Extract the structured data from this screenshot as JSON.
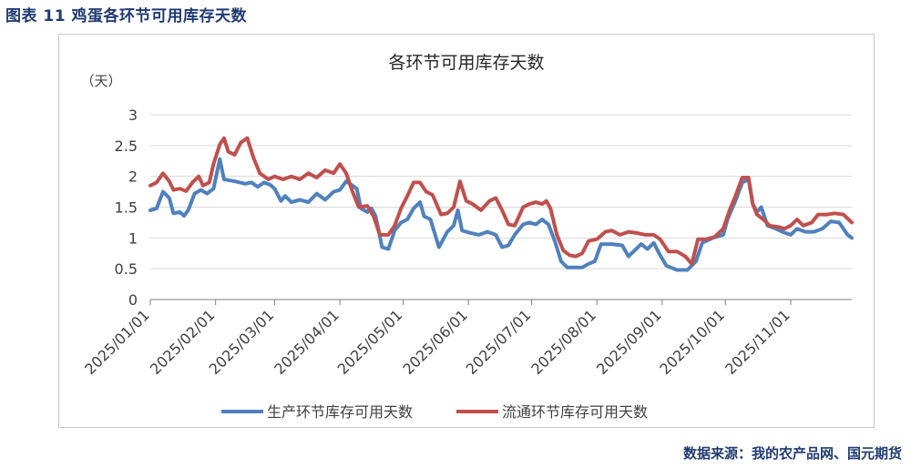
{
  "figure_caption": "图表 11  鸡蛋各环节可用库存天数",
  "source_note": "数据来源：我的农产品网、国元期货",
  "colors": {
    "series1": "#4f81bd",
    "series2": "#c0504d",
    "grid": "#d9d9d9",
    "axis": "#7f7f7f",
    "caption": "#1f3b73"
  },
  "chart_data": {
    "type": "line",
    "title": "各环节可用库存天数",
    "ylabel": "（天）",
    "xlabel": "",
    "ylim": [
      0,
      3
    ],
    "yticks": [
      "0",
      "0.5",
      "1",
      "1.5",
      "2",
      "2.5",
      "3"
    ],
    "grid": "horizontal",
    "legend_position": "bottom",
    "x_tick_labels": [
      "2025/01/01",
      "2025/02/01",
      "2025/03/01",
      "2025/04/01",
      "2025/05/01",
      "2025/06/01",
      "2025/07/01",
      "2025/08/01",
      "2025/09/01",
      "2025/10/01",
      "2025/11/01"
    ],
    "x_range": [
      "2025/01/01",
      "2025/11/30"
    ],
    "series": [
      {
        "name": "生产环节库存可用天数",
        "color": "#4f81bd",
        "points": [
          [
            "2025/01/01",
            1.45
          ],
          [
            "2025/01/04",
            1.48
          ],
          [
            "2025/01/07",
            1.75
          ],
          [
            "2025/01/10",
            1.65
          ],
          [
            "2025/01/12",
            1.4
          ],
          [
            "2025/01/15",
            1.42
          ],
          [
            "2025/01/17",
            1.36
          ],
          [
            "2025/01/19",
            1.45
          ],
          [
            "2025/01/22",
            1.72
          ],
          [
            "2025/01/25",
            1.78
          ],
          [
            "2025/01/28",
            1.72
          ],
          [
            "2025/01/31",
            1.8
          ],
          [
            "2025/02/03",
            2.28
          ],
          [
            "2025/02/05",
            1.95
          ],
          [
            "2025/02/10",
            1.92
          ],
          [
            "2025/02/15",
            1.88
          ],
          [
            "2025/02/18",
            1.9
          ],
          [
            "2025/02/21",
            1.83
          ],
          [
            "2025/02/24",
            1.9
          ],
          [
            "2025/02/27",
            1.86
          ],
          [
            "2025/03/01",
            1.8
          ],
          [
            "2025/03/04",
            1.6
          ],
          [
            "2025/03/06",
            1.68
          ],
          [
            "2025/03/09",
            1.58
          ],
          [
            "2025/03/13",
            1.62
          ],
          [
            "2025/03/17",
            1.58
          ],
          [
            "2025/03/21",
            1.72
          ],
          [
            "2025/03/25",
            1.62
          ],
          [
            "2025/03/29",
            1.75
          ],
          [
            "2025/04/01",
            1.78
          ],
          [
            "2025/04/04",
            1.92
          ],
          [
            "2025/04/07",
            1.85
          ],
          [
            "2025/04/09",
            1.8
          ],
          [
            "2025/04/11",
            1.48
          ],
          [
            "2025/04/14",
            1.42
          ],
          [
            "2025/04/16",
            1.48
          ],
          [
            "2025/04/18",
            1.35
          ],
          [
            "2025/04/21",
            0.85
          ],
          [
            "2025/04/24",
            0.82
          ],
          [
            "2025/04/27",
            1.12
          ],
          [
            "2025/04/30",
            1.25
          ],
          [
            "2025/05/03",
            1.3
          ],
          [
            "2025/05/06",
            1.48
          ],
          [
            "2025/05/09",
            1.58
          ],
          [
            "2025/05/11",
            1.35
          ],
          [
            "2025/05/14",
            1.3
          ],
          [
            "2025/05/18",
            0.85
          ],
          [
            "2025/05/22",
            1.1
          ],
          [
            "2025/05/25",
            1.2
          ],
          [
            "2025/05/27",
            1.45
          ],
          [
            "2025/05/29",
            1.12
          ],
          [
            "2025/06/02",
            1.08
          ],
          [
            "2025/06/06",
            1.05
          ],
          [
            "2025/06/10",
            1.1
          ],
          [
            "2025/06/14",
            1.05
          ],
          [
            "2025/06/17",
            0.85
          ],
          [
            "2025/06/20",
            0.88
          ],
          [
            "2025/06/23",
            1.05
          ],
          [
            "2025/06/27",
            1.22
          ],
          [
            "2025/06/30",
            1.25
          ],
          [
            "2025/07/03",
            1.22
          ],
          [
            "2025/07/06",
            1.3
          ],
          [
            "2025/07/09",
            1.22
          ],
          [
            "2025/07/12",
            0.95
          ],
          [
            "2025/07/15",
            0.62
          ],
          [
            "2025/07/18",
            0.52
          ],
          [
            "2025/07/21",
            0.52
          ],
          [
            "2025/07/25",
            0.52
          ],
          [
            "2025/07/28",
            0.58
          ],
          [
            "2025/07/31",
            0.62
          ],
          [
            "2025/08/03",
            0.9
          ],
          [
            "2025/08/08",
            0.9
          ],
          [
            "2025/08/13",
            0.88
          ],
          [
            "2025/08/16",
            0.7
          ],
          [
            "2025/08/19",
            0.8
          ],
          [
            "2025/08/22",
            0.9
          ],
          [
            "2025/08/25",
            0.82
          ],
          [
            "2025/08/28",
            0.92
          ],
          [
            "2025/08/31",
            0.72
          ],
          [
            "2025/09/03",
            0.55
          ],
          [
            "2025/09/08",
            0.48
          ],
          [
            "2025/09/13",
            0.48
          ],
          [
            "2025/09/17",
            0.62
          ],
          [
            "2025/09/20",
            0.92
          ],
          [
            "2025/09/25",
            1.0
          ],
          [
            "2025/09/30",
            1.05
          ],
          [
            "2025/10/02",
            1.3
          ],
          [
            "2025/10/06",
            1.62
          ],
          [
            "2025/10/09",
            1.9
          ],
          [
            "2025/10/12",
            1.95
          ],
          [
            "2025/10/14",
            1.55
          ],
          [
            "2025/10/16",
            1.42
          ],
          [
            "2025/10/18",
            1.5
          ],
          [
            "2025/10/21",
            1.2
          ],
          [
            "2025/10/25",
            1.15
          ],
          [
            "2025/10/28",
            1.1
          ],
          [
            "2025/11/01",
            1.05
          ],
          [
            "2025/11/04",
            1.15
          ],
          [
            "2025/11/08",
            1.1
          ],
          [
            "2025/11/12",
            1.1
          ],
          [
            "2025/11/16",
            1.15
          ],
          [
            "2025/11/20",
            1.27
          ],
          [
            "2025/11/24",
            1.25
          ],
          [
            "2025/11/28",
            1.05
          ],
          [
            "2025/11/30",
            1.0
          ]
        ]
      },
      {
        "name": "流通环节库存可用天数",
        "color": "#c0504d",
        "points": [
          [
            "2025/01/01",
            1.85
          ],
          [
            "2025/01/04",
            1.9
          ],
          [
            "2025/01/07",
            2.05
          ],
          [
            "2025/01/10",
            1.92
          ],
          [
            "2025/01/12",
            1.78
          ],
          [
            "2025/01/15",
            1.8
          ],
          [
            "2025/01/18",
            1.76
          ],
          [
            "2025/01/21",
            1.9
          ],
          [
            "2025/01/24",
            2.0
          ],
          [
            "2025/01/26",
            1.85
          ],
          [
            "2025/01/29",
            1.9
          ],
          [
            "2025/01/31",
            2.2
          ],
          [
            "2025/02/03",
            2.52
          ],
          [
            "2025/02/05",
            2.62
          ],
          [
            "2025/02/07",
            2.4
          ],
          [
            "2025/02/10",
            2.35
          ],
          [
            "2025/02/13",
            2.55
          ],
          [
            "2025/02/16",
            2.62
          ],
          [
            "2025/02/19",
            2.3
          ],
          [
            "2025/02/22",
            2.05
          ],
          [
            "2025/02/26",
            1.95
          ],
          [
            "2025/03/01",
            2.0
          ],
          [
            "2025/03/05",
            1.95
          ],
          [
            "2025/03/09",
            2.0
          ],
          [
            "2025/03/13",
            1.95
          ],
          [
            "2025/03/17",
            2.05
          ],
          [
            "2025/03/21",
            1.98
          ],
          [
            "2025/03/25",
            2.1
          ],
          [
            "2025/03/29",
            2.05
          ],
          [
            "2025/04/01",
            2.2
          ],
          [
            "2025/04/04",
            2.05
          ],
          [
            "2025/04/07",
            1.75
          ],
          [
            "2025/04/10",
            1.5
          ],
          [
            "2025/04/14",
            1.52
          ],
          [
            "2025/04/17",
            1.35
          ],
          [
            "2025/04/20",
            1.05
          ],
          [
            "2025/04/24",
            1.05
          ],
          [
            "2025/04/27",
            1.2
          ],
          [
            "2025/04/30",
            1.48
          ],
          [
            "2025/05/03",
            1.68
          ],
          [
            "2025/05/06",
            1.9
          ],
          [
            "2025/05/09",
            1.9
          ],
          [
            "2025/05/12",
            1.75
          ],
          [
            "2025/05/15",
            1.7
          ],
          [
            "2025/05/19",
            1.38
          ],
          [
            "2025/05/22",
            1.4
          ],
          [
            "2025/05/25",
            1.5
          ],
          [
            "2025/05/28",
            1.92
          ],
          [
            "2025/05/31",
            1.6
          ],
          [
            "2025/06/03",
            1.55
          ],
          [
            "2025/06/07",
            1.45
          ],
          [
            "2025/06/11",
            1.6
          ],
          [
            "2025/06/14",
            1.65
          ],
          [
            "2025/06/17",
            1.45
          ],
          [
            "2025/06/20",
            1.22
          ],
          [
            "2025/06/23",
            1.2
          ],
          [
            "2025/06/27",
            1.5
          ],
          [
            "2025/06/30",
            1.55
          ],
          [
            "2025/07/03",
            1.58
          ],
          [
            "2025/07/06",
            1.55
          ],
          [
            "2025/07/08",
            1.6
          ],
          [
            "2025/07/10",
            1.48
          ],
          [
            "2025/07/13",
            1.05
          ],
          [
            "2025/07/16",
            0.8
          ],
          [
            "2025/07/19",
            0.72
          ],
          [
            "2025/07/22",
            0.7
          ],
          [
            "2025/07/25",
            0.75
          ],
          [
            "2025/07/28",
            0.95
          ],
          [
            "2025/08/01",
            0.98
          ],
          [
            "2025/08/05",
            1.1
          ],
          [
            "2025/08/08",
            1.12
          ],
          [
            "2025/08/12",
            1.05
          ],
          [
            "2025/08/16",
            1.1
          ],
          [
            "2025/08/20",
            1.08
          ],
          [
            "2025/08/24",
            1.05
          ],
          [
            "2025/08/28",
            1.05
          ],
          [
            "2025/08/31",
            0.98
          ],
          [
            "2025/09/04",
            0.78
          ],
          [
            "2025/09/08",
            0.78
          ],
          [
            "2025/09/12",
            0.7
          ],
          [
            "2025/09/15",
            0.58
          ],
          [
            "2025/09/18",
            0.98
          ],
          [
            "2025/09/22",
            0.98
          ],
          [
            "2025/09/26",
            1.02
          ],
          [
            "2025/09/30",
            1.15
          ],
          [
            "2025/10/03",
            1.45
          ],
          [
            "2025/10/06",
            1.7
          ],
          [
            "2025/10/09",
            1.98
          ],
          [
            "2025/10/12",
            1.98
          ],
          [
            "2025/10/14",
            1.55
          ],
          [
            "2025/10/16",
            1.38
          ],
          [
            "2025/10/19",
            1.3
          ],
          [
            "2025/10/22",
            1.2
          ],
          [
            "2025/10/26",
            1.18
          ],
          [
            "2025/10/29",
            1.15
          ],
          [
            "2025/11/01",
            1.2
          ],
          [
            "2025/11/04",
            1.3
          ],
          [
            "2025/11/07",
            1.2
          ],
          [
            "2025/11/11",
            1.25
          ],
          [
            "2025/11/14",
            1.38
          ],
          [
            "2025/11/18",
            1.38
          ],
          [
            "2025/11/22",
            1.4
          ],
          [
            "2025/11/26",
            1.38
          ],
          [
            "2025/11/30",
            1.25
          ]
        ]
      }
    ]
  }
}
